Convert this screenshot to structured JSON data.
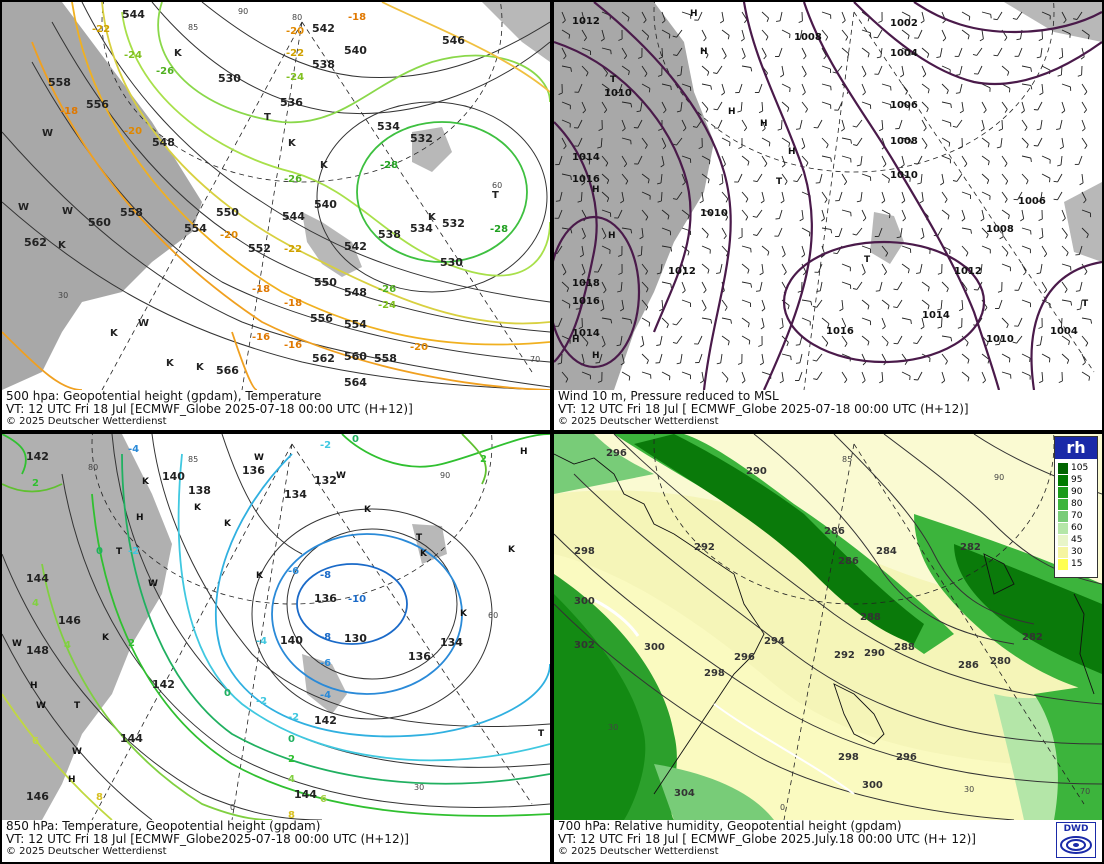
{
  "panels": {
    "p500": {
      "title": "500 hpa: Geopotential height (gpdam), Temperature",
      "vt": "VT: 12 UTC Fri  18 Jul [ECMWF_Globe 2025-07-18 00:00 UTC  (H+12)]",
      "copy": "© 2025 Deutscher Wetterdienst",
      "height_labels": [
        "544",
        "542",
        "540",
        "538",
        "536",
        "534",
        "532",
        "530",
        "546",
        "548",
        "550",
        "552",
        "554",
        "556",
        "558",
        "560",
        "562",
        "564",
        "566"
      ],
      "temp_labels": [
        "-18",
        "-20",
        "-22",
        "-24",
        "-26",
        "-28",
        "-16"
      ],
      "symbols": [
        "K",
        "T",
        "W"
      ]
    },
    "pwind": {
      "title": "Wind 10 m, Pressure reduced to MSL",
      "vt": "VT: 12 UTC Fri  18 Jul [ ECMWF_Globe 2025-07-18 00:00 UTC (H+12)]",
      "copy": "© 2025 Deutscher Wetterdienst",
      "isobar_labels": [
        "1012",
        "1010",
        "1008",
        "1006",
        "1004",
        "1002",
        "1014",
        "1016",
        "1018"
      ],
      "symbols": [
        "H",
        "T"
      ]
    },
    "p850": {
      "title": "850 hPa:  Temperature, Geopotential height (gpdam)",
      "vt": "VT: 12 UTC Fri  18 Jul [ECMWF_Globe2025-07-18 00:00 UTC (H+12)]",
      "copy": "© 2025 Deutscher Wetterdienst",
      "height_labels": [
        "142",
        "140",
        "138",
        "136",
        "134",
        "132",
        "130",
        "144",
        "146",
        "148"
      ],
      "temp_labels": [
        "-4",
        "-2",
        "0",
        "2",
        "4",
        "6",
        "8",
        "-6",
        "-8",
        "-10"
      ],
      "symbols": [
        "H",
        "K",
        "T",
        "W"
      ]
    },
    "p700": {
      "title": "700 hPa:  Relative humidity, Geopotential height (gpdam)",
      "vt": "VT: 12 UTC Fri  18 Jul [ ECMWF_Globe  2025.July.18 00:00 UTC (H+ 12)]",
      "copy": "© 2025 Deutscher Wetterdienst",
      "height_labels": [
        "296",
        "298",
        "300",
        "302",
        "304",
        "294",
        "292",
        "290",
        "288",
        "286",
        "284",
        "282",
        "280"
      ],
      "legend_title": "rh",
      "legend_values": [
        "105",
        "95",
        "90",
        "80",
        "70",
        "60",
        "45",
        "30",
        "15"
      ],
      "legend_colors": [
        "#006400",
        "#007a00",
        "#1a9a1a",
        "#3cb43c",
        "#78cc78",
        "#b4e6a8",
        "#e8f5c8",
        "#f5f5a0",
        "#ffff50"
      ],
      "logo_text": "DWD"
    }
  },
  "grid_labels": [
    "85",
    "90",
    "80",
    "70",
    "60",
    "30",
    "0"
  ]
}
